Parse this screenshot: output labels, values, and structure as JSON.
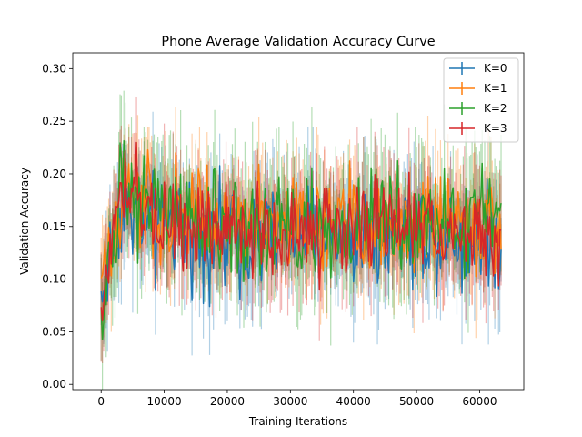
{
  "chart_data": {
    "type": "line",
    "title": "Phone Average Validation Accuracy Curve",
    "xlabel": "Training Iterations",
    "ylabel": "Validation Accuracy",
    "xlim": [
      -4500,
      67000
    ],
    "ylim": [
      -0.005,
      0.315
    ],
    "xticks": [
      0,
      10000,
      20000,
      30000,
      40000,
      50000,
      60000
    ],
    "xtick_labels": [
      "0",
      "10000",
      "20000",
      "30000",
      "40000",
      "50000",
      "60000"
    ],
    "yticks": [
      0.0,
      0.05,
      0.1,
      0.15,
      0.2,
      0.25,
      0.3
    ],
    "ytick_labels": [
      "0.00",
      "0.05",
      "0.10",
      "0.15",
      "0.20",
      "0.25",
      "0.30"
    ],
    "grid": false,
    "legend_position": "top-right",
    "error_bars": true,
    "x_sampling": {
      "start": 0,
      "end": 63500,
      "step": 200
    },
    "series": [
      {
        "name": "K=0",
        "color": "#1f77b4",
        "profile": [
          [
            0,
            0.08
          ],
          [
            3000,
            0.17
          ],
          [
            8000,
            0.15
          ],
          [
            20000,
            0.14
          ],
          [
            40000,
            0.145
          ],
          [
            63500,
            0.14
          ]
        ],
        "noise": 0.035,
        "err": 0.045
      },
      {
        "name": "K=1",
        "color": "#ff7f0e",
        "profile": [
          [
            0,
            0.09
          ],
          [
            3000,
            0.18
          ],
          [
            8000,
            0.16
          ],
          [
            20000,
            0.15
          ],
          [
            40000,
            0.15
          ],
          [
            63500,
            0.15
          ]
        ],
        "noise": 0.035,
        "err": 0.045
      },
      {
        "name": "K=2",
        "color": "#2ca02c",
        "profile": [
          [
            0,
            0.06
          ],
          [
            3000,
            0.18
          ],
          [
            8000,
            0.165
          ],
          [
            20000,
            0.15
          ],
          [
            40000,
            0.15
          ],
          [
            63500,
            0.155
          ]
        ],
        "noise": 0.035,
        "err": 0.05
      },
      {
        "name": "K=3",
        "color": "#d62728",
        "profile": [
          [
            0,
            0.06
          ],
          [
            3000,
            0.19
          ],
          [
            8000,
            0.16
          ],
          [
            20000,
            0.145
          ],
          [
            40000,
            0.15
          ],
          [
            63500,
            0.14
          ]
        ],
        "noise": 0.03,
        "err": 0.045
      }
    ]
  }
}
